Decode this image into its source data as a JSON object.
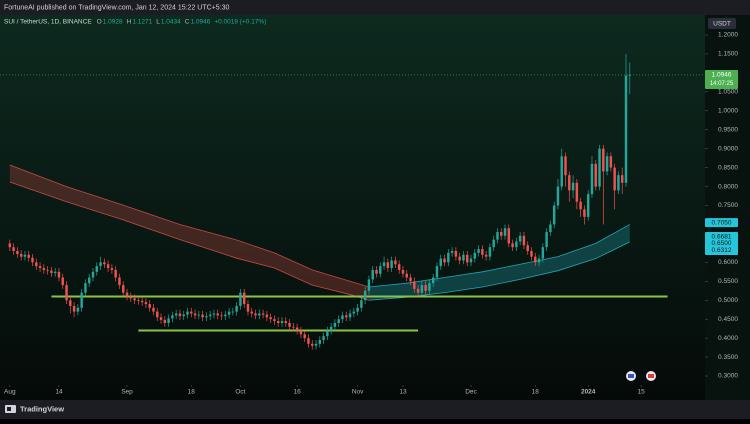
{
  "header": {
    "text": "FortuneAI published on TradingView.com, Jan 12, 2024 15:22 UTC+5:30"
  },
  "footer": {
    "brand": "TradingView"
  },
  "chart_data": {
    "type": "candlestick",
    "legend": {
      "symbol": "SUI / TetherUS, 1D, BINANCE",
      "items": [
        {
          "label": "O",
          "value": "1.0928"
        },
        {
          "label": "H",
          "value": "1.1271"
        },
        {
          "label": "L",
          "value": "1.0434"
        },
        {
          "label": "C",
          "value": "1.0946"
        }
      ],
      "change": "+0.0018 (+0.17%)"
    },
    "currency": "USDT",
    "up_color": "#26a69a",
    "down_color": "#ef5350",
    "xlim": [
      -2.6,
      183.9
    ],
    "xticks": [
      {
        "value": 0,
        "label": "Aug"
      },
      {
        "value": 13,
        "label": "14"
      },
      {
        "value": 31,
        "label": "Sep"
      },
      {
        "value": 48,
        "label": "18"
      },
      {
        "value": 61,
        "label": "Oct"
      },
      {
        "value": 76,
        "label": "16"
      },
      {
        "value": 92,
        "label": "Nov"
      },
      {
        "value": 104,
        "label": "13"
      },
      {
        "value": 122,
        "label": "Dec"
      },
      {
        "value": 139,
        "label": "18"
      },
      {
        "value": 153,
        "label": "2024"
      },
      {
        "value": 167,
        "label": "15"
      }
    ],
    "ylim": [
      0.2763,
      1.2528
    ],
    "yticks": [
      {
        "value": 0.3,
        "label": "0.3000"
      },
      {
        "value": 0.35,
        "label": "0.3500"
      },
      {
        "value": 0.4,
        "label": "0.4000"
      },
      {
        "value": 0.45,
        "label": "0.4500"
      },
      {
        "value": 0.5,
        "label": "0.5000"
      },
      {
        "value": 0.55,
        "label": "0.5500"
      },
      {
        "value": 0.6,
        "label": "0.6000"
      },
      {
        "value": 0.65,
        "label": "0.6500"
      },
      {
        "value": 0.7,
        "label": "0.7000"
      },
      {
        "value": 0.75,
        "label": "0.7500"
      },
      {
        "value": 0.8,
        "label": "0.8000"
      },
      {
        "value": 0.85,
        "label": "0.8500"
      },
      {
        "value": 0.9,
        "label": "0.9000"
      },
      {
        "value": 0.95,
        "label": "0.9500"
      },
      {
        "value": 1.0,
        "label": "1.0000"
      },
      {
        "value": 1.05,
        "label": "1.0500"
      },
      {
        "value": 1.1,
        "label": "1.1000"
      },
      {
        "value": 1.15,
        "label": "1.1500"
      },
      {
        "value": 1.2,
        "label": "1.2000"
      }
    ],
    "open": [
      0.65,
      0.64,
      0.63,
      0.622,
      0.615,
      0.62,
      0.612,
      0.6,
      0.59,
      0.585,
      0.58,
      0.578,
      0.572,
      0.575,
      0.56,
      0.54,
      0.5,
      0.485,
      0.47,
      0.48,
      0.52,
      0.545,
      0.56,
      0.575,
      0.59,
      0.6,
      0.595,
      0.585,
      0.58,
      0.56,
      0.54,
      0.52,
      0.51,
      0.505,
      0.5,
      0.498,
      0.495,
      0.49,
      0.48,
      0.47,
      0.455,
      0.448,
      0.44,
      0.452,
      0.46,
      0.465,
      0.458,
      0.462,
      0.47,
      0.465,
      0.46,
      0.462,
      0.455,
      0.458,
      0.462,
      0.465,
      0.46,
      0.458,
      0.462,
      0.47,
      0.47,
      0.485,
      0.52,
      0.49,
      0.47,
      0.465,
      0.46,
      0.465,
      0.462,
      0.455,
      0.45,
      0.445,
      0.44,
      0.445,
      0.44,
      0.43,
      0.428,
      0.42,
      0.41,
      0.4,
      0.385,
      0.38,
      0.385,
      0.395,
      0.405,
      0.42,
      0.43,
      0.44,
      0.45,
      0.46,
      0.455,
      0.465,
      0.47,
      0.48,
      0.5,
      0.525,
      0.555,
      0.58,
      0.57,
      0.59,
      0.6,
      0.585,
      0.605,
      0.595,
      0.58,
      0.57,
      0.56,
      0.55,
      0.53,
      0.52,
      0.54,
      0.525,
      0.545,
      0.56,
      0.59,
      0.61,
      0.6,
      0.625,
      0.63,
      0.615,
      0.605,
      0.62,
      0.6,
      0.61,
      0.625,
      0.635,
      0.62,
      0.615,
      0.64,
      0.66,
      0.68,
      0.67,
      0.69,
      0.65,
      0.64,
      0.655,
      0.67,
      0.645,
      0.63,
      0.615,
      0.6,
      0.61,
      0.64,
      0.68,
      0.7,
      0.75,
      0.8,
      0.88,
      0.83,
      0.79,
      0.81,
      0.76,
      0.74,
      0.72,
      0.78,
      0.86,
      0.8,
      0.9,
      0.84,
      0.88,
      0.85,
      0.79,
      0.83,
      0.81,
      1.0928
    ],
    "close": [
      0.64,
      0.63,
      0.622,
      0.615,
      0.62,
      0.612,
      0.6,
      0.59,
      0.585,
      0.58,
      0.578,
      0.572,
      0.575,
      0.56,
      0.54,
      0.5,
      0.485,
      0.47,
      0.48,
      0.52,
      0.545,
      0.56,
      0.575,
      0.59,
      0.6,
      0.595,
      0.585,
      0.58,
      0.56,
      0.54,
      0.52,
      0.51,
      0.505,
      0.5,
      0.498,
      0.495,
      0.49,
      0.48,
      0.47,
      0.455,
      0.448,
      0.44,
      0.452,
      0.46,
      0.465,
      0.458,
      0.462,
      0.47,
      0.465,
      0.46,
      0.462,
      0.455,
      0.458,
      0.462,
      0.465,
      0.46,
      0.458,
      0.462,
      0.47,
      0.47,
      0.485,
      0.52,
      0.49,
      0.47,
      0.465,
      0.46,
      0.465,
      0.462,
      0.455,
      0.45,
      0.445,
      0.44,
      0.445,
      0.44,
      0.43,
      0.428,
      0.42,
      0.41,
      0.4,
      0.385,
      0.38,
      0.385,
      0.395,
      0.405,
      0.42,
      0.43,
      0.44,
      0.45,
      0.46,
      0.455,
      0.465,
      0.47,
      0.48,
      0.5,
      0.525,
      0.555,
      0.58,
      0.57,
      0.59,
      0.6,
      0.585,
      0.605,
      0.595,
      0.58,
      0.57,
      0.56,
      0.55,
      0.53,
      0.52,
      0.54,
      0.525,
      0.545,
      0.56,
      0.59,
      0.61,
      0.6,
      0.625,
      0.63,
      0.615,
      0.605,
      0.62,
      0.6,
      0.61,
      0.625,
      0.635,
      0.62,
      0.615,
      0.64,
      0.66,
      0.68,
      0.67,
      0.69,
      0.65,
      0.64,
      0.655,
      0.67,
      0.645,
      0.63,
      0.615,
      0.6,
      0.61,
      0.64,
      0.68,
      0.7,
      0.75,
      0.8,
      0.88,
      0.83,
      0.79,
      0.81,
      0.76,
      0.74,
      0.72,
      0.78,
      0.86,
      0.8,
      0.9,
      0.84,
      0.88,
      0.85,
      0.79,
      0.83,
      0.81,
      1.0928,
      1.0946
    ],
    "high": [
      0.66,
      0.65,
      0.64,
      0.632,
      0.63,
      0.63,
      0.622,
      0.61,
      0.6,
      0.595,
      0.59,
      0.588,
      0.585,
      0.585,
      0.57,
      0.55,
      0.51,
      0.495,
      0.49,
      0.53,
      0.555,
      0.57,
      0.585,
      0.6,
      0.615,
      0.61,
      0.605,
      0.595,
      0.59,
      0.57,
      0.55,
      0.53,
      0.52,
      0.515,
      0.51,
      0.508,
      0.505,
      0.5,
      0.49,
      0.48,
      0.465,
      0.458,
      0.462,
      0.47,
      0.475,
      0.475,
      0.472,
      0.48,
      0.48,
      0.475,
      0.472,
      0.472,
      0.468,
      0.472,
      0.475,
      0.475,
      0.47,
      0.472,
      0.48,
      0.48,
      0.495,
      0.53,
      0.53,
      0.5,
      0.48,
      0.475,
      0.475,
      0.475,
      0.472,
      0.465,
      0.46,
      0.455,
      0.455,
      0.455,
      0.45,
      0.44,
      0.438,
      0.43,
      0.42,
      0.41,
      0.395,
      0.395,
      0.405,
      0.415,
      0.43,
      0.44,
      0.45,
      0.46,
      0.47,
      0.47,
      0.475,
      0.48,
      0.49,
      0.51,
      0.535,
      0.565,
      0.59,
      0.59,
      0.6,
      0.615,
      0.61,
      0.615,
      0.615,
      0.605,
      0.59,
      0.58,
      0.57,
      0.56,
      0.54,
      0.55,
      0.55,
      0.555,
      0.57,
      0.6,
      0.62,
      0.62,
      0.635,
      0.64,
      0.64,
      0.625,
      0.63,
      0.63,
      0.62,
      0.635,
      0.645,
      0.645,
      0.63,
      0.65,
      0.67,
      0.69,
      0.69,
      0.7,
      0.7,
      0.66,
      0.665,
      0.68,
      0.68,
      0.655,
      0.64,
      0.625,
      0.62,
      0.65,
      0.69,
      0.71,
      0.76,
      0.82,
      0.9,
      0.89,
      0.84,
      0.83,
      0.82,
      0.77,
      0.75,
      0.79,
      0.88,
      0.87,
      0.91,
      0.91,
      0.89,
      0.89,
      0.86,
      0.84,
      0.85,
      1.15,
      1.1271
    ],
    "low": [
      0.63,
      0.62,
      0.612,
      0.605,
      0.605,
      0.602,
      0.59,
      0.58,
      0.575,
      0.57,
      0.568,
      0.562,
      0.562,
      0.55,
      0.53,
      0.49,
      0.465,
      0.455,
      0.46,
      0.47,
      0.51,
      0.535,
      0.55,
      0.565,
      0.58,
      0.585,
      0.575,
      0.57,
      0.55,
      0.53,
      0.51,
      0.5,
      0.495,
      0.49,
      0.488,
      0.485,
      0.48,
      0.47,
      0.46,
      0.445,
      0.438,
      0.43,
      0.43,
      0.442,
      0.45,
      0.448,
      0.448,
      0.452,
      0.455,
      0.45,
      0.45,
      0.445,
      0.445,
      0.448,
      0.452,
      0.45,
      0.448,
      0.448,
      0.452,
      0.46,
      0.46,
      0.475,
      0.48,
      0.46,
      0.455,
      0.45,
      0.45,
      0.452,
      0.445,
      0.44,
      0.435,
      0.43,
      0.43,
      0.43,
      0.42,
      0.418,
      0.41,
      0.4,
      0.39,
      0.375,
      0.37,
      0.37,
      0.375,
      0.385,
      0.395,
      0.41,
      0.42,
      0.43,
      0.44,
      0.445,
      0.445,
      0.455,
      0.46,
      0.47,
      0.49,
      0.515,
      0.545,
      0.56,
      0.56,
      0.58,
      0.575,
      0.575,
      0.585,
      0.57,
      0.56,
      0.55,
      0.54,
      0.52,
      0.51,
      0.51,
      0.515,
      0.515,
      0.535,
      0.55,
      0.58,
      0.59,
      0.59,
      0.615,
      0.605,
      0.595,
      0.595,
      0.59,
      0.59,
      0.6,
      0.615,
      0.61,
      0.605,
      0.605,
      0.63,
      0.65,
      0.66,
      0.66,
      0.64,
      0.63,
      0.63,
      0.645,
      0.635,
      0.62,
      0.605,
      0.59,
      0.59,
      0.6,
      0.63,
      0.67,
      0.69,
      0.74,
      0.79,
      0.8,
      0.76,
      0.77,
      0.74,
      0.72,
      0.7,
      0.71,
      0.77,
      0.79,
      0.79,
      0.7,
      0.83,
      0.84,
      0.74,
      0.78,
      0.78,
      0.8,
      1.0434
    ],
    "ribbons": [
      {
        "color": "#ef5350",
        "x": [
          0,
          15,
          30,
          45,
          60,
          70,
          80,
          90,
          95
        ],
        "upper": [
          0.857,
          0.8,
          0.751,
          0.7,
          0.659,
          0.625,
          0.58,
          0.55,
          0.535
        ],
        "lower": [
          0.812,
          0.76,
          0.712,
          0.66,
          0.611,
          0.585,
          0.54,
          0.515,
          0.5
        ]
      },
      {
        "color": "#26c6da",
        "x": [
          95,
          105,
          115,
          125,
          135,
          145,
          155,
          164
        ],
        "upper": [
          0.535,
          0.545,
          0.56,
          0.575,
          0.595,
          0.615,
          0.65,
          0.7
        ],
        "lower": [
          0.5,
          0.508,
          0.52,
          0.535,
          0.555,
          0.578,
          0.61,
          0.654
        ]
      }
    ],
    "levels": [
      {
        "value": 0.51,
        "x": [
          11,
          174
        ],
        "color": "#8bc34a"
      },
      {
        "value": 0.42,
        "x": [
          34,
          108
        ],
        "color": "#8bc34a"
      }
    ],
    "last_price": {
      "value": 1.0946,
      "label": "1.0946",
      "countdown": "14:07:25",
      "color": "#4caf50"
    },
    "price_tags": [
      {
        "value": 0.705,
        "label": "0.7050"
      },
      {
        "value": 0.6681,
        "label": "0.6681"
      },
      {
        "value": 0.65,
        "label": "0.6500"
      },
      {
        "value": 0.6312,
        "label": "0.6312"
      }
    ],
    "tag_color": "#26c6da"
  }
}
